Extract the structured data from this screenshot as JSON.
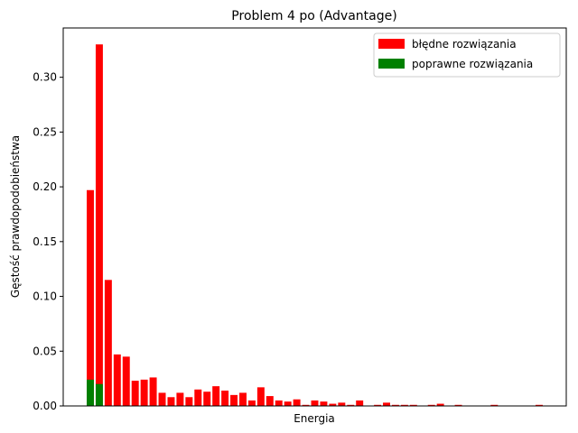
{
  "chart_data": {
    "type": "bar",
    "title": "Problem 4 po (Advantage)",
    "xlabel": "Energia",
    "ylabel": "Gęstość prawdopodobieństwa",
    "ylim": [
      0,
      0.345
    ],
    "yticks": [
      "0.00",
      "0.05",
      "0.10",
      "0.15",
      "0.20",
      "0.25",
      "0.30"
    ],
    "legend_position": "top-right",
    "grid": false,
    "x_tick_labels": false,
    "series": [
      {
        "name": "błędne rozwiązania",
        "color": "#ff0000",
        "values": [
          0.197,
          0.33,
          0.115,
          0.047,
          0.045,
          0.023,
          0.024,
          0.026,
          0.012,
          0.008,
          0.012,
          0.008,
          0.015,
          0.013,
          0.018,
          0.014,
          0.01,
          0.012,
          0.005,
          0.017,
          0.009,
          0.005,
          0.004,
          0.006,
          0.001,
          0.005,
          0.004,
          0.002,
          0.003,
          0.001,
          0.005,
          0,
          0.001,
          0.003,
          0.001,
          0.001,
          0.001,
          0,
          0.001,
          0.002,
          0,
          0.001,
          0,
          0,
          0,
          0.001,
          0,
          0,
          0,
          0,
          0.001
        ]
      },
      {
        "name": "poprawne rozwiązania",
        "color": "#008000",
        "values": [
          0.024,
          0.02,
          0,
          0,
          0,
          0,
          0,
          0,
          0,
          0,
          0,
          0,
          0,
          0,
          0,
          0,
          0,
          0,
          0,
          0,
          0,
          0,
          0,
          0,
          0,
          0,
          0,
          0,
          0,
          0,
          0,
          0,
          0,
          0,
          0,
          0,
          0,
          0,
          0,
          0,
          0,
          0,
          0,
          0,
          0,
          0,
          0,
          0,
          0,
          0,
          0
        ]
      }
    ]
  }
}
